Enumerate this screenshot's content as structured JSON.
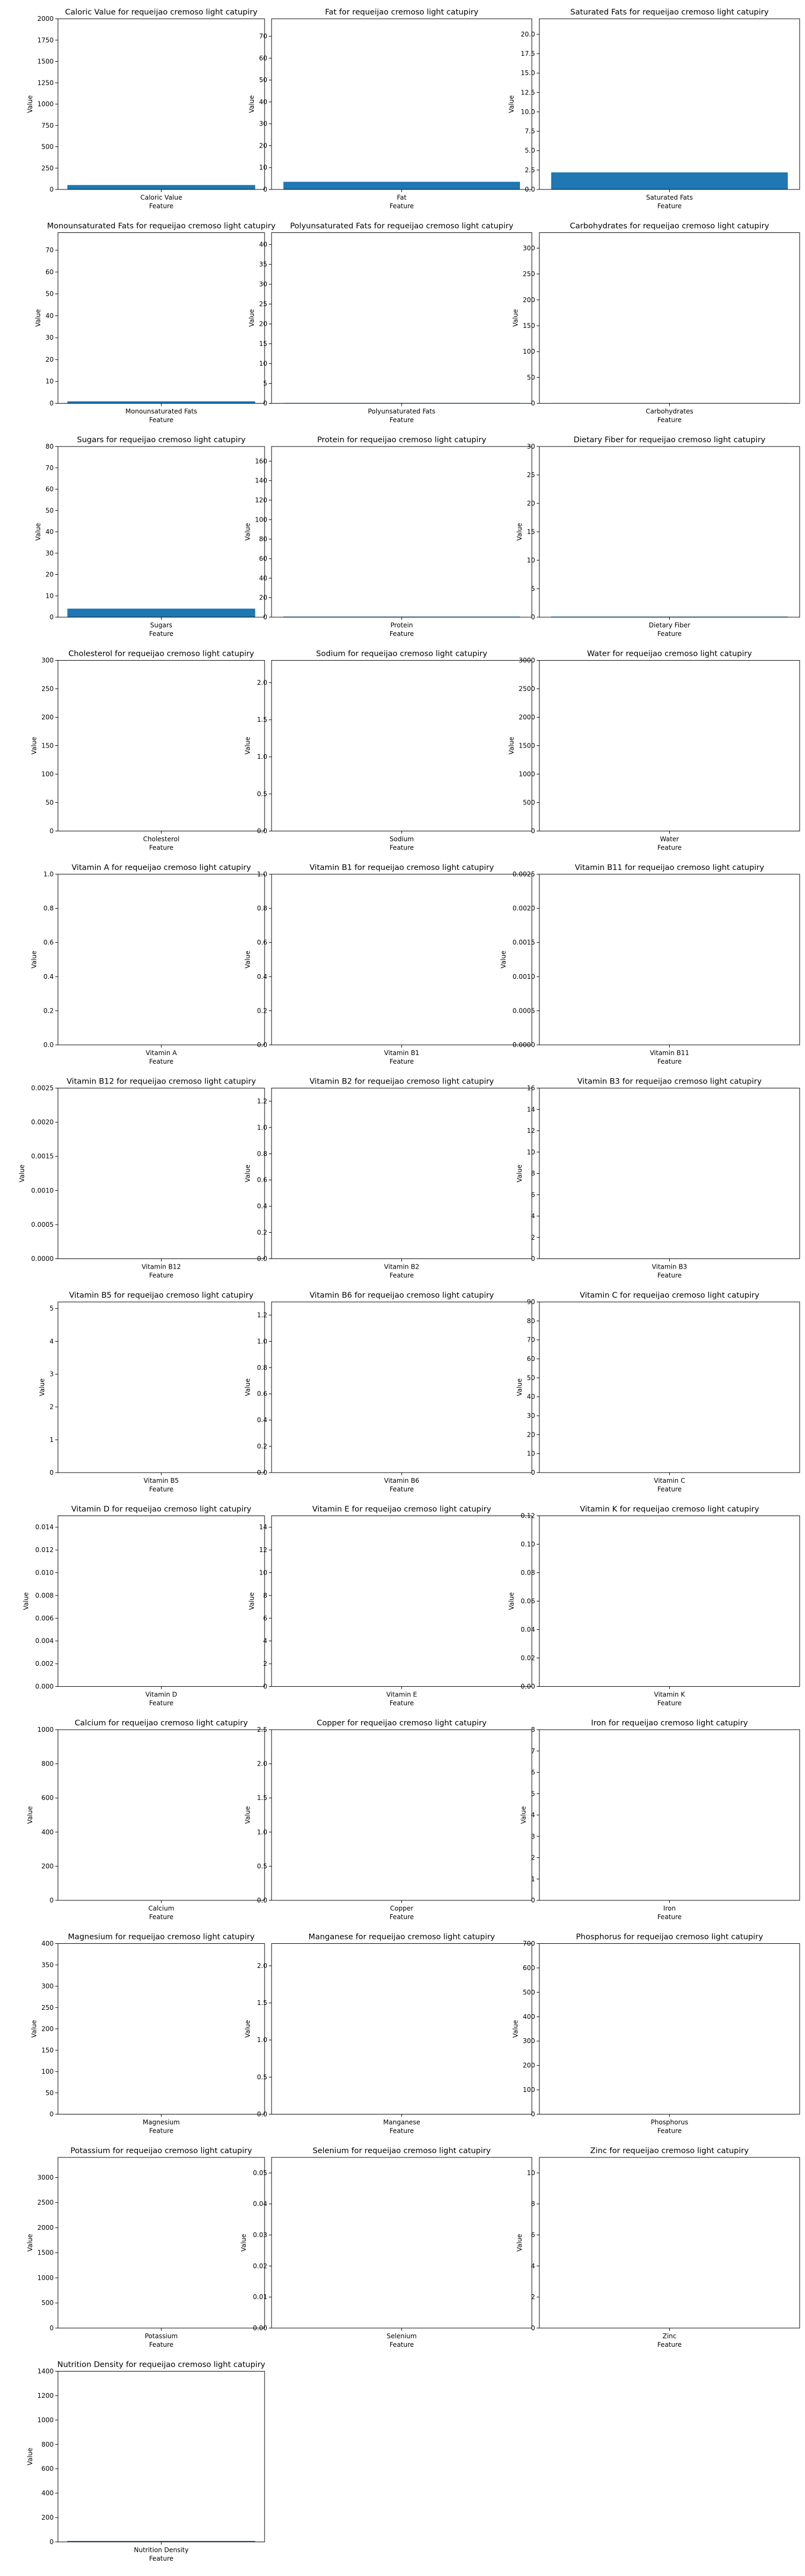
{
  "chart_data": [
    {
      "type": "bar",
      "title": "Caloric Value for requeijao cremoso light catupiry",
      "categories": [
        "Caloric Value"
      ],
      "values": [
        52
      ],
      "xlabel": "Feature",
      "ylabel": "Value",
      "ylim": [
        0,
        2000
      ],
      "yticks": [
        0,
        250,
        500,
        750,
        1000,
        1250,
        1500,
        1750,
        2000
      ],
      "ytick_labels": [
        "0",
        "250",
        "500",
        "750",
        "1000",
        "1250",
        "1500",
        "1750",
        "2000"
      ]
    },
    {
      "type": "bar",
      "title": "Fat for requeijao cremoso light catupiry",
      "categories": [
        "Fat"
      ],
      "values": [
        3.5
      ],
      "xlabel": "Feature",
      "ylabel": "Value",
      "ylim": [
        0,
        78
      ],
      "yticks": [
        0,
        10,
        20,
        30,
        40,
        50,
        60,
        70
      ],
      "ytick_labels": [
        "0",
        "10",
        "20",
        "30",
        "40",
        "50",
        "60",
        "70"
      ]
    },
    {
      "type": "bar",
      "title": "Saturated Fats for requeijao cremoso light catupiry",
      "categories": [
        "Saturated Fats"
      ],
      "values": [
        2.2
      ],
      "xlabel": "Feature",
      "ylabel": "Value",
      "ylim": [
        0,
        22
      ],
      "yticks": [
        0,
        2.5,
        5,
        7.5,
        10,
        12.5,
        15,
        17.5,
        20
      ],
      "ytick_labels": [
        "0.0",
        "2.5",
        "5.0",
        "7.5",
        "10.0",
        "12.5",
        "15.0",
        "17.5",
        "20.0"
      ]
    },
    {
      "type": "bar",
      "title": "Monounsaturated Fats for requeijao cremoso light catupiry",
      "categories": [
        "Monounsaturated Fats"
      ],
      "values": [
        0.9
      ],
      "xlabel": "Feature",
      "ylabel": "Value",
      "ylim": [
        0,
        78
      ],
      "yticks": [
        0,
        10,
        20,
        30,
        40,
        50,
        60,
        70
      ],
      "ytick_labels": [
        "0",
        "10",
        "20",
        "30",
        "40",
        "50",
        "60",
        "70"
      ]
    },
    {
      "type": "bar",
      "title": "Polyunsaturated Fats for requeijao cremoso light catupiry",
      "categories": [
        "Polyunsaturated Fats"
      ],
      "values": [
        0.1
      ],
      "xlabel": "Feature",
      "ylabel": "Value",
      "ylim": [
        0,
        43
      ],
      "yticks": [
        0,
        5,
        10,
        15,
        20,
        25,
        30,
        35,
        40
      ],
      "ytick_labels": [
        "0",
        "5",
        "10",
        "15",
        "20",
        "25",
        "30",
        "35",
        "40"
      ]
    },
    {
      "type": "bar",
      "title": "Carbohydrates for requeijao cremoso light catupiry",
      "categories": [
        "Carbohydrates"
      ],
      "values": [
        0.6
      ],
      "xlabel": "Feature",
      "ylabel": "Value",
      "ylim": [
        0,
        330
      ],
      "yticks": [
        0,
        50,
        100,
        150,
        200,
        250,
        300
      ],
      "ytick_labels": [
        "0",
        "50",
        "100",
        "150",
        "200",
        "250",
        "300"
      ]
    },
    {
      "type": "bar",
      "title": "Sugars for requeijao cremoso light catupiry",
      "categories": [
        "Sugars"
      ],
      "values": [
        4
      ],
      "xlabel": "Feature",
      "ylabel": "Value",
      "ylim": [
        0,
        80
      ],
      "yticks": [
        0,
        10,
        20,
        30,
        40,
        50,
        60,
        70,
        80
      ],
      "ytick_labels": [
        "0",
        "10",
        "20",
        "30",
        "40",
        "50",
        "60",
        "70",
        "80"
      ]
    },
    {
      "type": "bar",
      "title": "Protein for requeijao cremoso light catupiry",
      "categories": [
        "Protein"
      ],
      "values": [
        0.6
      ],
      "xlabel": "Feature",
      "ylabel": "Value",
      "ylim": [
        0,
        175
      ],
      "yticks": [
        0,
        20,
        40,
        60,
        80,
        100,
        120,
        140,
        160
      ],
      "ytick_labels": [
        "0",
        "20",
        "40",
        "60",
        "80",
        "100",
        "120",
        "140",
        "160"
      ]
    },
    {
      "type": "bar",
      "title": "Dietary Fiber for requeijao cremoso light catupiry",
      "categories": [
        "Dietary Fiber"
      ],
      "values": [
        0.1
      ],
      "xlabel": "Feature",
      "ylabel": "Value",
      "ylim": [
        0,
        30
      ],
      "yticks": [
        0,
        5,
        10,
        15,
        20,
        25,
        30
      ],
      "ytick_labels": [
        "0",
        "5",
        "10",
        "15",
        "20",
        "25",
        "30"
      ]
    },
    {
      "type": "bar",
      "title": "Cholesterol for requeijao cremoso light catupiry",
      "categories": [
        "Cholesterol"
      ],
      "values": [
        0
      ],
      "xlabel": "Feature",
      "ylabel": "Value",
      "ylim": [
        0,
        300
      ],
      "yticks": [
        0,
        50,
        100,
        150,
        200,
        250,
        300
      ],
      "ytick_labels": [
        "0",
        "50",
        "100",
        "150",
        "200",
        "250",
        "300"
      ]
    },
    {
      "type": "bar",
      "title": "Sodium for requeijao cremoso light catupiry",
      "categories": [
        "Sodium"
      ],
      "values": [
        0
      ],
      "xlabel": "Feature",
      "ylabel": "Value",
      "ylim": [
        0,
        2.3
      ],
      "yticks": [
        0,
        0.5,
        1,
        1.5,
        2
      ],
      "ytick_labels": [
        "0.0",
        "0.5",
        "1.0",
        "1.5",
        "2.0"
      ]
    },
    {
      "type": "bar",
      "title": "Water for requeijao cremoso light catupiry",
      "categories": [
        "Water"
      ],
      "values": [
        0
      ],
      "xlabel": "Feature",
      "ylabel": "Value",
      "ylim": [
        0,
        3000
      ],
      "yticks": [
        0,
        500,
        1000,
        1500,
        2000,
        2500,
        3000
      ],
      "ytick_labels": [
        "0",
        "500",
        "1000",
        "1500",
        "2000",
        "2500",
        "3000"
      ]
    },
    {
      "type": "bar",
      "title": "Vitamin A for requeijao cremoso light catupiry",
      "categories": [
        "Vitamin A"
      ],
      "values": [
        0
      ],
      "xlabel": "Feature",
      "ylabel": "Value",
      "ylim": [
        0,
        1
      ],
      "yticks": [
        0,
        0.2,
        0.4,
        0.6,
        0.8,
        1
      ],
      "ytick_labels": [
        "0.0",
        "0.2",
        "0.4",
        "0.6",
        "0.8",
        "1.0"
      ]
    },
    {
      "type": "bar",
      "title": "Vitamin B1 for requeijao cremoso light catupiry",
      "categories": [
        "Vitamin B1"
      ],
      "values": [
        0
      ],
      "xlabel": "Feature",
      "ylabel": "Value",
      "ylim": [
        0,
        1
      ],
      "yticks": [
        0,
        0.2,
        0.4,
        0.6,
        0.8,
        1
      ],
      "ytick_labels": [
        "0.0",
        "0.2",
        "0.4",
        "0.6",
        "0.8",
        "1.0"
      ]
    },
    {
      "type": "bar",
      "title": "Vitamin B11 for requeijao cremoso light catupiry",
      "categories": [
        "Vitamin B11"
      ],
      "values": [
        0
      ],
      "xlabel": "Feature",
      "ylabel": "Value",
      "ylim": [
        0,
        0.0025
      ],
      "yticks": [
        0,
        0.0005,
        0.001,
        0.0015,
        0.002,
        0.0025
      ],
      "ytick_labels": [
        "0.0000",
        "0.0005",
        "0.0010",
        "0.0015",
        "0.0020",
        "0.0025"
      ]
    },
    {
      "type": "bar",
      "title": "Vitamin B12 for requeijao cremoso light catupiry",
      "categories": [
        "Vitamin B12"
      ],
      "values": [
        0
      ],
      "xlabel": "Feature",
      "ylabel": "Value",
      "ylim": [
        0,
        0.0025
      ],
      "yticks": [
        0,
        0.0005,
        0.001,
        0.0015,
        0.002,
        0.0025
      ],
      "ytick_labels": [
        "0.0000",
        "0.0005",
        "0.0010",
        "0.0015",
        "0.0020",
        "0.0025"
      ]
    },
    {
      "type": "bar",
      "title": "Vitamin B2 for requeijao cremoso light catupiry",
      "categories": [
        "Vitamin B2"
      ],
      "values": [
        0
      ],
      "xlabel": "Feature",
      "ylabel": "Value",
      "ylim": [
        0,
        1.3
      ],
      "yticks": [
        0,
        0.2,
        0.4,
        0.6,
        0.8,
        1,
        1.2
      ],
      "ytick_labels": [
        "0.0",
        "0.2",
        "0.4",
        "0.6",
        "0.8",
        "1.0",
        "1.2"
      ]
    },
    {
      "type": "bar",
      "title": "Vitamin B3 for requeijao cremoso light catupiry",
      "categories": [
        "Vitamin B3"
      ],
      "values": [
        0
      ],
      "xlabel": "Feature",
      "ylabel": "Value",
      "ylim": [
        0,
        16
      ],
      "yticks": [
        0,
        2,
        4,
        6,
        8,
        10,
        12,
        14,
        16
      ],
      "ytick_labels": [
        "0",
        "2",
        "4",
        "6",
        "8",
        "10",
        "12",
        "14",
        "16"
      ]
    },
    {
      "type": "bar",
      "title": "Vitamin B5 for requeijao cremoso light catupiry",
      "categories": [
        "Vitamin B5"
      ],
      "values": [
        0
      ],
      "xlabel": "Feature",
      "ylabel": "Value",
      "ylim": [
        0,
        5.2
      ],
      "yticks": [
        0,
        1,
        2,
        3,
        4,
        5
      ],
      "ytick_labels": [
        "0",
        "1",
        "2",
        "3",
        "4",
        "5"
      ]
    },
    {
      "type": "bar",
      "title": "Vitamin B6 for requeijao cremoso light catupiry",
      "categories": [
        "Vitamin B6"
      ],
      "values": [
        0
      ],
      "xlabel": "Feature",
      "ylabel": "Value",
      "ylim": [
        0,
        1.3
      ],
      "yticks": [
        0,
        0.2,
        0.4,
        0.6,
        0.8,
        1,
        1.2
      ],
      "ytick_labels": [
        "0.0",
        "0.2",
        "0.4",
        "0.6",
        "0.8",
        "1.0",
        "1.2"
      ]
    },
    {
      "type": "bar",
      "title": "Vitamin C for requeijao cremoso light catupiry",
      "categories": [
        "Vitamin C"
      ],
      "values": [
        0
      ],
      "xlabel": "Feature",
      "ylabel": "Value",
      "ylim": [
        0,
        90
      ],
      "yticks": [
        0,
        10,
        20,
        30,
        40,
        50,
        60,
        70,
        80,
        90
      ],
      "ytick_labels": [
        "0",
        "10",
        "20",
        "30",
        "40",
        "50",
        "60",
        "70",
        "80",
        "90"
      ]
    },
    {
      "type": "bar",
      "title": "Vitamin D for requeijao cremoso light catupiry",
      "categories": [
        "Vitamin D"
      ],
      "values": [
        0
      ],
      "xlabel": "Feature",
      "ylabel": "Value",
      "ylim": [
        0,
        0.015
      ],
      "yticks": [
        0,
        0.002,
        0.004,
        0.006,
        0.008,
        0.01,
        0.012,
        0.014
      ],
      "ytick_labels": [
        "0.000",
        "0.002",
        "0.004",
        "0.006",
        "0.008",
        "0.010",
        "0.012",
        "0.014"
      ]
    },
    {
      "type": "bar",
      "title": "Vitamin E for requeijao cremoso light catupiry",
      "categories": [
        "Vitamin E"
      ],
      "values": [
        0
      ],
      "xlabel": "Feature",
      "ylabel": "Value",
      "ylim": [
        0,
        15
      ],
      "yticks": [
        0,
        2,
        4,
        6,
        8,
        10,
        12,
        14
      ],
      "ytick_labels": [
        "0",
        "2",
        "4",
        "6",
        "8",
        "10",
        "12",
        "14"
      ]
    },
    {
      "type": "bar",
      "title": "Vitamin K for requeijao cremoso light catupiry",
      "categories": [
        "Vitamin K"
      ],
      "values": [
        0
      ],
      "xlabel": "Feature",
      "ylabel": "Value",
      "ylim": [
        0,
        0.12
      ],
      "yticks": [
        0,
        0.02,
        0.04,
        0.06,
        0.08,
        0.1,
        0.12
      ],
      "ytick_labels": [
        "0.00",
        "0.02",
        "0.04",
        "0.06",
        "0.08",
        "0.10",
        "0.12"
      ]
    },
    {
      "type": "bar",
      "title": "Calcium for requeijao cremoso light catupiry",
      "categories": [
        "Calcium"
      ],
      "values": [
        0
      ],
      "xlabel": "Feature",
      "ylabel": "Value",
      "ylim": [
        0,
        1000
      ],
      "yticks": [
        0,
        200,
        400,
        600,
        800,
        1000
      ],
      "ytick_labels": [
        "0",
        "200",
        "400",
        "600",
        "800",
        "1000"
      ]
    },
    {
      "type": "bar",
      "title": "Copper for requeijao cremoso light catupiry",
      "categories": [
        "Copper"
      ],
      "values": [
        0
      ],
      "xlabel": "Feature",
      "ylabel": "Value",
      "ylim": [
        0,
        2.5
      ],
      "yticks": [
        0,
        0.5,
        1,
        1.5,
        2,
        2.5
      ],
      "ytick_labels": [
        "0.0",
        "0.5",
        "1.0",
        "1.5",
        "2.0",
        "2.5"
      ]
    },
    {
      "type": "bar",
      "title": "Iron for requeijao cremoso light catupiry",
      "categories": [
        "Iron"
      ],
      "values": [
        0
      ],
      "xlabel": "Feature",
      "ylabel": "Value",
      "ylim": [
        0,
        8
      ],
      "yticks": [
        0,
        1,
        2,
        3,
        4,
        5,
        6,
        7,
        8
      ],
      "ytick_labels": [
        "0",
        "1",
        "2",
        "3",
        "4",
        "5",
        "6",
        "7",
        "8"
      ]
    },
    {
      "type": "bar",
      "title": "Magnesium for requeijao cremoso light catupiry",
      "categories": [
        "Magnesium"
      ],
      "values": [
        0
      ],
      "xlabel": "Feature",
      "ylabel": "Value",
      "ylim": [
        0,
        400
      ],
      "yticks": [
        0,
        50,
        100,
        150,
        200,
        250,
        300,
        350,
        400
      ],
      "ytick_labels": [
        "0",
        "50",
        "100",
        "150",
        "200",
        "250",
        "300",
        "350",
        "400"
      ]
    },
    {
      "type": "bar",
      "title": "Manganese for requeijao cremoso light catupiry",
      "categories": [
        "Manganese"
      ],
      "values": [
        0
      ],
      "xlabel": "Feature",
      "ylabel": "Value",
      "ylim": [
        0,
        2.3
      ],
      "yticks": [
        0,
        0.5,
        1,
        1.5,
        2
      ],
      "ytick_labels": [
        "0.0",
        "0.5",
        "1.0",
        "1.5",
        "2.0"
      ]
    },
    {
      "type": "bar",
      "title": "Phosphorus for requeijao cremoso light catupiry",
      "categories": [
        "Phosphorus"
      ],
      "values": [
        0
      ],
      "xlabel": "Feature",
      "ylabel": "Value",
      "ylim": [
        0,
        700
      ],
      "yticks": [
        0,
        100,
        200,
        300,
        400,
        500,
        600,
        700
      ],
      "ytick_labels": [
        "0",
        "100",
        "200",
        "300",
        "400",
        "500",
        "600",
        "700"
      ]
    },
    {
      "type": "bar",
      "title": "Potassium for requeijao cremoso light catupiry",
      "categories": [
        "Potassium"
      ],
      "values": [
        0
      ],
      "xlabel": "Feature",
      "ylabel": "Value",
      "ylim": [
        0,
        3400
      ],
      "yticks": [
        0,
        500,
        1000,
        1500,
        2000,
        2500,
        3000
      ],
      "ytick_labels": [
        "0",
        "500",
        "1000",
        "1500",
        "2000",
        "2500",
        "3000"
      ]
    },
    {
      "type": "bar",
      "title": "Selenium for requeijao cremoso light catupiry",
      "categories": [
        "Selenium"
      ],
      "values": [
        0
      ],
      "xlabel": "Feature",
      "ylabel": "Value",
      "ylim": [
        0,
        0.055
      ],
      "yticks": [
        0,
        0.01,
        0.02,
        0.03,
        0.04,
        0.05
      ],
      "ytick_labels": [
        "0.00",
        "0.01",
        "0.02",
        "0.03",
        "0.04",
        "0.05"
      ]
    },
    {
      "type": "bar",
      "title": "Zinc for requeijao cremoso light catupiry",
      "categories": [
        "Zinc"
      ],
      "values": [
        0
      ],
      "xlabel": "Feature",
      "ylabel": "Value",
      "ylim": [
        0,
        11
      ],
      "yticks": [
        0,
        2,
        4,
        6,
        8,
        10
      ],
      "ytick_labels": [
        "0",
        "2",
        "4",
        "6",
        "8",
        "10"
      ]
    },
    {
      "type": "bar",
      "title": "Nutrition Density for requeijao cremoso light catupiry",
      "categories": [
        "Nutrition Density"
      ],
      "values": [
        8
      ],
      "xlabel": "Feature",
      "ylabel": "Value",
      "ylim": [
        0,
        1400
      ],
      "yticks": [
        0,
        200,
        400,
        600,
        800,
        1000,
        1200,
        1400
      ],
      "ytick_labels": [
        "0",
        "200",
        "400",
        "600",
        "800",
        "1000",
        "1200",
        "1400"
      ]
    }
  ],
  "colors": {
    "bar": "#1f77b4",
    "axes": "#000000",
    "text": "#000000"
  }
}
